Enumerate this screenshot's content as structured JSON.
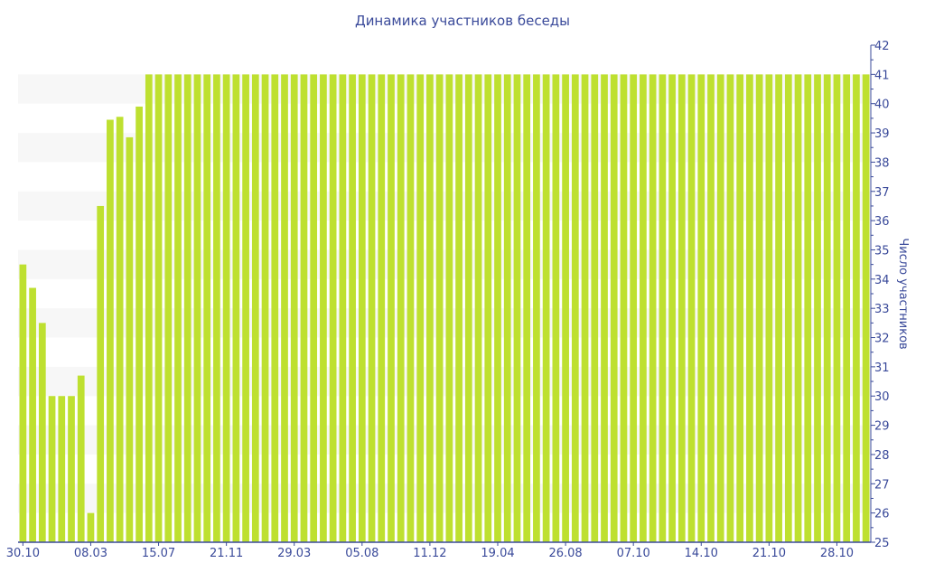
{
  "chart_data": {
    "type": "bar",
    "title": "Динамика участников беседы",
    "xlabel": "",
    "ylabel": "Число участников",
    "ylim": [
      25,
      42
    ],
    "y_ticks": [
      25,
      26,
      27,
      28,
      29,
      30,
      31,
      32,
      33,
      34,
      35,
      36,
      37,
      38,
      39,
      40,
      41,
      42
    ],
    "y_axis_side": "right",
    "grid": "alternating horizontal bands",
    "x_tick_labels": [
      "30.10",
      "08.03",
      "15.07",
      "21.11",
      "29.03",
      "05.08",
      "11.12",
      "19.04",
      "26.08",
      "07.10",
      "14.10",
      "21.10",
      "28.10"
    ],
    "x_tick_every_n_bars": 7,
    "bar_color": "#bee030",
    "text_color": "#3a4a9a",
    "values": [
      34.5,
      33.7,
      32.5,
      30,
      30,
      30,
      30.7,
      26,
      36.5,
      39.45,
      39.55,
      38.85,
      39.9,
      41,
      41,
      41,
      41,
      41,
      41,
      41,
      41,
      41,
      41,
      41,
      41,
      41,
      41,
      41,
      41,
      41,
      41,
      41,
      41,
      41,
      41,
      41,
      41,
      41,
      41,
      41,
      41,
      41,
      41,
      41,
      41,
      41,
      41,
      41,
      41,
      41,
      41,
      41,
      41,
      41,
      41,
      41,
      41,
      41,
      41,
      41,
      41,
      41,
      41,
      41,
      41,
      41,
      41,
      41,
      41,
      41,
      41,
      41,
      41,
      41,
      41,
      41,
      41,
      41,
      41,
      41,
      41,
      41,
      41,
      41,
      41,
      41,
      41,
      41
    ]
  }
}
